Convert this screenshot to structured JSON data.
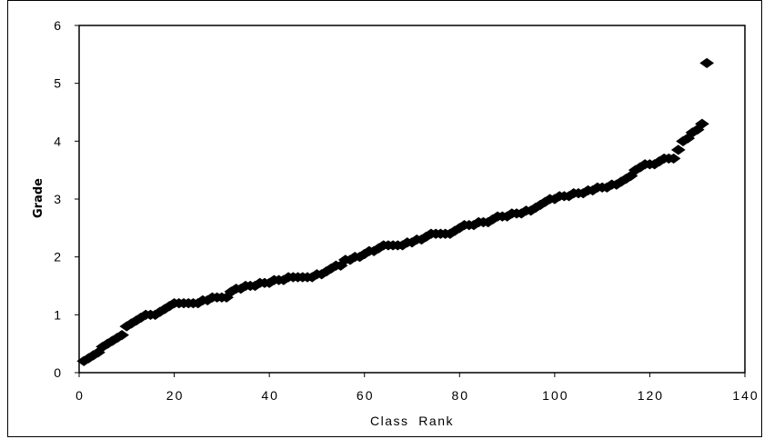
{
  "chart_data": {
    "type": "scatter",
    "title": "",
    "xlabel": "Class  Rank",
    "ylabel": "Grade",
    "xlim": [
      0,
      140
    ],
    "ylim": [
      0,
      6
    ],
    "xticks": [
      "0",
      "20",
      "40",
      "60",
      "80",
      "100",
      "120",
      "140"
    ],
    "yticks": [
      "0",
      "1",
      "2",
      "3",
      "4",
      "5",
      "6"
    ],
    "grid": false,
    "legend": "none",
    "marker": "diamond",
    "marker_color": "#000000",
    "series": [
      {
        "x": [
          1,
          2,
          3,
          4,
          5,
          6,
          7,
          8,
          9,
          10,
          11,
          12,
          13,
          14,
          15,
          16,
          17,
          18,
          19,
          20,
          21,
          22,
          23,
          24,
          25,
          26,
          27,
          28,
          29,
          30,
          31,
          32,
          33,
          34,
          35,
          36,
          37,
          38,
          39,
          40,
          41,
          42,
          43,
          44,
          45,
          46,
          47,
          48,
          49,
          50,
          51,
          52,
          53,
          54,
          55,
          56,
          57,
          58,
          59,
          60,
          61,
          62,
          63,
          64,
          65,
          66,
          67,
          68,
          69,
          70,
          71,
          72,
          73,
          74,
          75,
          76,
          77,
          78,
          79,
          80,
          81,
          82,
          83,
          84,
          85,
          86,
          87,
          88,
          89,
          90,
          91,
          92,
          93,
          94,
          95,
          96,
          97,
          98,
          99,
          100,
          101,
          102,
          103,
          104,
          105,
          106,
          107,
          108,
          109,
          110,
          111,
          112,
          113,
          114,
          115,
          116,
          117,
          118,
          119,
          120,
          121,
          122,
          123,
          124,
          125,
          126,
          127,
          128,
          129,
          130,
          131,
          132
        ],
        "y": [
          0.2,
          0.25,
          0.3,
          0.35,
          0.45,
          0.5,
          0.55,
          0.6,
          0.65,
          0.8,
          0.85,
          0.9,
          0.95,
          1.0,
          1.0,
          1.0,
          1.05,
          1.1,
          1.15,
          1.2,
          1.2,
          1.2,
          1.2,
          1.2,
          1.2,
          1.25,
          1.25,
          1.3,
          1.3,
          1.3,
          1.3,
          1.4,
          1.45,
          1.45,
          1.5,
          1.5,
          1.5,
          1.55,
          1.55,
          1.55,
          1.6,
          1.6,
          1.6,
          1.65,
          1.65,
          1.65,
          1.65,
          1.65,
          1.65,
          1.7,
          1.7,
          1.75,
          1.8,
          1.85,
          1.85,
          1.95,
          1.95,
          2.0,
          2.0,
          2.05,
          2.1,
          2.1,
          2.15,
          2.2,
          2.2,
          2.2,
          2.2,
          2.2,
          2.25,
          2.25,
          2.3,
          2.3,
          2.35,
          2.4,
          2.4,
          2.4,
          2.4,
          2.4,
          2.45,
          2.5,
          2.55,
          2.55,
          2.55,
          2.6,
          2.6,
          2.6,
          2.65,
          2.7,
          2.7,
          2.7,
          2.75,
          2.75,
          2.75,
          2.8,
          2.8,
          2.85,
          2.9,
          2.95,
          3.0,
          3.0,
          3.05,
          3.05,
          3.05,
          3.1,
          3.1,
          3.1,
          3.15,
          3.15,
          3.2,
          3.2,
          3.2,
          3.25,
          3.25,
          3.3,
          3.35,
          3.4,
          3.5,
          3.55,
          3.6,
          3.6,
          3.6,
          3.65,
          3.7,
          3.7,
          3.7,
          3.85,
          4.0,
          4.05,
          4.15,
          4.2,
          4.3,
          5.35
        ]
      }
    ]
  }
}
